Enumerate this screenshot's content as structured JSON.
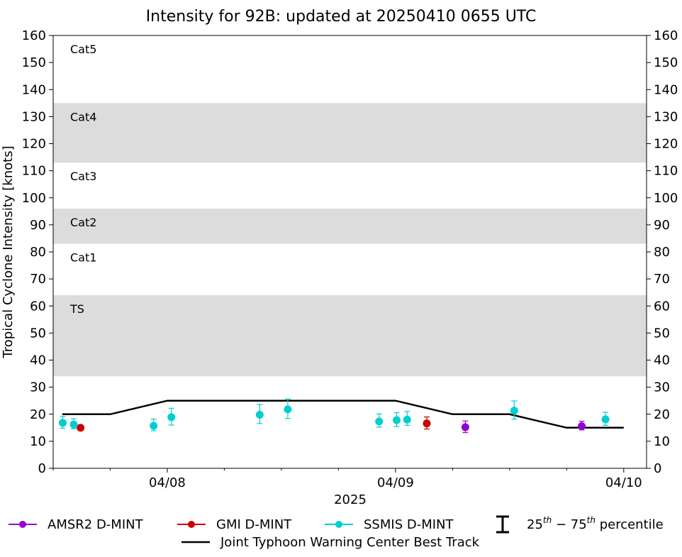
{
  "chart_data": {
    "type": "scatter",
    "title": "Intensity for 92B: updated at 20250410 0655 UTC",
    "xlabel": "2025",
    "ylabel": "Tropical Cyclone Intensity [knots]",
    "x_unit": "days of April 2025 (UTC)",
    "xlim": [
      7.5,
      10.1
    ],
    "ylim": [
      0,
      160
    ],
    "yticks": [
      0,
      10,
      20,
      30,
      40,
      50,
      60,
      70,
      80,
      90,
      100,
      110,
      120,
      130,
      140,
      150,
      160
    ],
    "xticks": [
      {
        "x": 8,
        "label": "04/08"
      },
      {
        "x": 9,
        "label": "04/09"
      },
      {
        "x": 10,
        "label": "04/10"
      }
    ],
    "minor_xticks": [
      7.5,
      7.75,
      8.25,
      8.5,
      8.75,
      9.25,
      9.5,
      9.75
    ],
    "bands": [
      {
        "label": "TS",
        "from": 34,
        "to": 64,
        "shaded": true
      },
      {
        "label": "Cat1",
        "from": 64,
        "to": 83,
        "shaded": false
      },
      {
        "label": "Cat2",
        "from": 83,
        "to": 96,
        "shaded": true
      },
      {
        "label": "Cat3",
        "from": 96,
        "to": 113,
        "shaded": false
      },
      {
        "label": "Cat4",
        "from": 113,
        "to": 135,
        "shaded": true
      },
      {
        "label": "Cat5",
        "from": 135,
        "to": 160,
        "shaded": false
      }
    ],
    "best_track": {
      "name": "Joint Typhoon Warning Center Best Track",
      "color": "#000000",
      "points": [
        {
          "x": 7.54,
          "y": 20
        },
        {
          "x": 7.75,
          "y": 20
        },
        {
          "x": 8.0,
          "y": 25
        },
        {
          "x": 8.25,
          "y": 25
        },
        {
          "x": 8.5,
          "y": 25
        },
        {
          "x": 8.75,
          "y": 25
        },
        {
          "x": 9.0,
          "y": 25
        },
        {
          "x": 9.25,
          "y": 20
        },
        {
          "x": 9.5,
          "y": 20
        },
        {
          "x": 9.75,
          "y": 15
        },
        {
          "x": 10.0,
          "y": 15
        }
      ]
    },
    "series": [
      {
        "name": "AMSR2 D-MINT",
        "color": "#9400d3",
        "points": [
          {
            "x": 9.306,
            "y": 15.2,
            "p25": 13.2,
            "p75": 17.5
          },
          {
            "x": 9.816,
            "y": 15.6,
            "p25": 14.2,
            "p75": 17.4
          }
        ]
      },
      {
        "name": "GMI D-MINT",
        "color": "#cc0000",
        "points": [
          {
            "x": 7.62,
            "y": 15.0,
            "p25": 14.6,
            "p75": 15.6
          },
          {
            "x": 9.137,
            "y": 16.6,
            "p25": 14.5,
            "p75": 19.0
          }
        ]
      },
      {
        "name": "SSMIS D-MINT",
        "color": "#00ced1",
        "points": [
          {
            "x": 7.542,
            "y": 16.8,
            "p25": 14.8,
            "p75": 19.2
          },
          {
            "x": 7.59,
            "y": 16.2,
            "p25": 14.6,
            "p75": 18.3
          },
          {
            "x": 7.94,
            "y": 15.7,
            "p25": 13.9,
            "p75": 18.2
          },
          {
            "x": 8.018,
            "y": 18.9,
            "p25": 16.0,
            "p75": 22.2
          },
          {
            "x": 8.405,
            "y": 19.8,
            "p25": 16.6,
            "p75": 23.6
          },
          {
            "x": 8.528,
            "y": 21.8,
            "p25": 18.4,
            "p75": 25.6
          },
          {
            "x": 8.928,
            "y": 17.3,
            "p25": 15.2,
            "p75": 20.1
          },
          {
            "x": 9.005,
            "y": 17.8,
            "p25": 15.4,
            "p75": 20.6
          },
          {
            "x": 9.051,
            "y": 18.0,
            "p25": 15.9,
            "p75": 21.0
          },
          {
            "x": 9.52,
            "y": 21.3,
            "p25": 18.2,
            "p75": 24.9
          },
          {
            "x": 9.92,
            "y": 18.1,
            "p25": 15.9,
            "p75": 20.7
          }
        ]
      }
    ],
    "legend": {
      "placement": "bottom",
      "errorbar_label_base": "25",
      "errorbar_sup1": "th",
      "errorbar_mid": " − 75",
      "errorbar_sup2": "th",
      "errorbar_tail": " percentile"
    }
  }
}
